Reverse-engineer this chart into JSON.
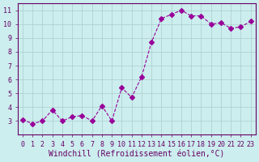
{
  "x": [
    0,
    1,
    2,
    3,
    4,
    5,
    6,
    7,
    8,
    9,
    10,
    11,
    12,
    13,
    14,
    15,
    16,
    17,
    18,
    19,
    20,
    21,
    22,
    23
  ],
  "y": [
    3.1,
    2.8,
    3.0,
    3.8,
    3.0,
    3.3,
    3.4,
    3.0,
    4.1,
    3.0,
    5.4,
    4.7,
    6.2,
    8.7,
    10.4,
    10.7,
    11.0,
    10.6,
    10.6,
    10.0,
    10.1,
    9.7,
    9.8,
    10.2
  ],
  "line_color": "#990099",
  "marker": "D",
  "marker_size": 3,
  "bg_color": "#cceeee",
  "grid_color": "#aacccc",
  "xlabel": "Windchill (Refroidissement éolien,°C)",
  "xlabel_color": "#660066",
  "xlabel_fontsize": 7,
  "xlim": [
    -0.5,
    23.5
  ],
  "ylim": [
    2.0,
    11.5
  ],
  "yticks": [
    3,
    4,
    5,
    6,
    7,
    8,
    9,
    10,
    11
  ],
  "xticks": [
    0,
    1,
    2,
    3,
    4,
    5,
    6,
    7,
    8,
    9,
    10,
    11,
    12,
    13,
    14,
    15,
    16,
    17,
    18,
    19,
    20,
    21,
    22,
    23
  ],
  "tick_color": "#660066",
  "tick_fontsize": 6,
  "spine_color": "#660066",
  "line_width": 0.8
}
